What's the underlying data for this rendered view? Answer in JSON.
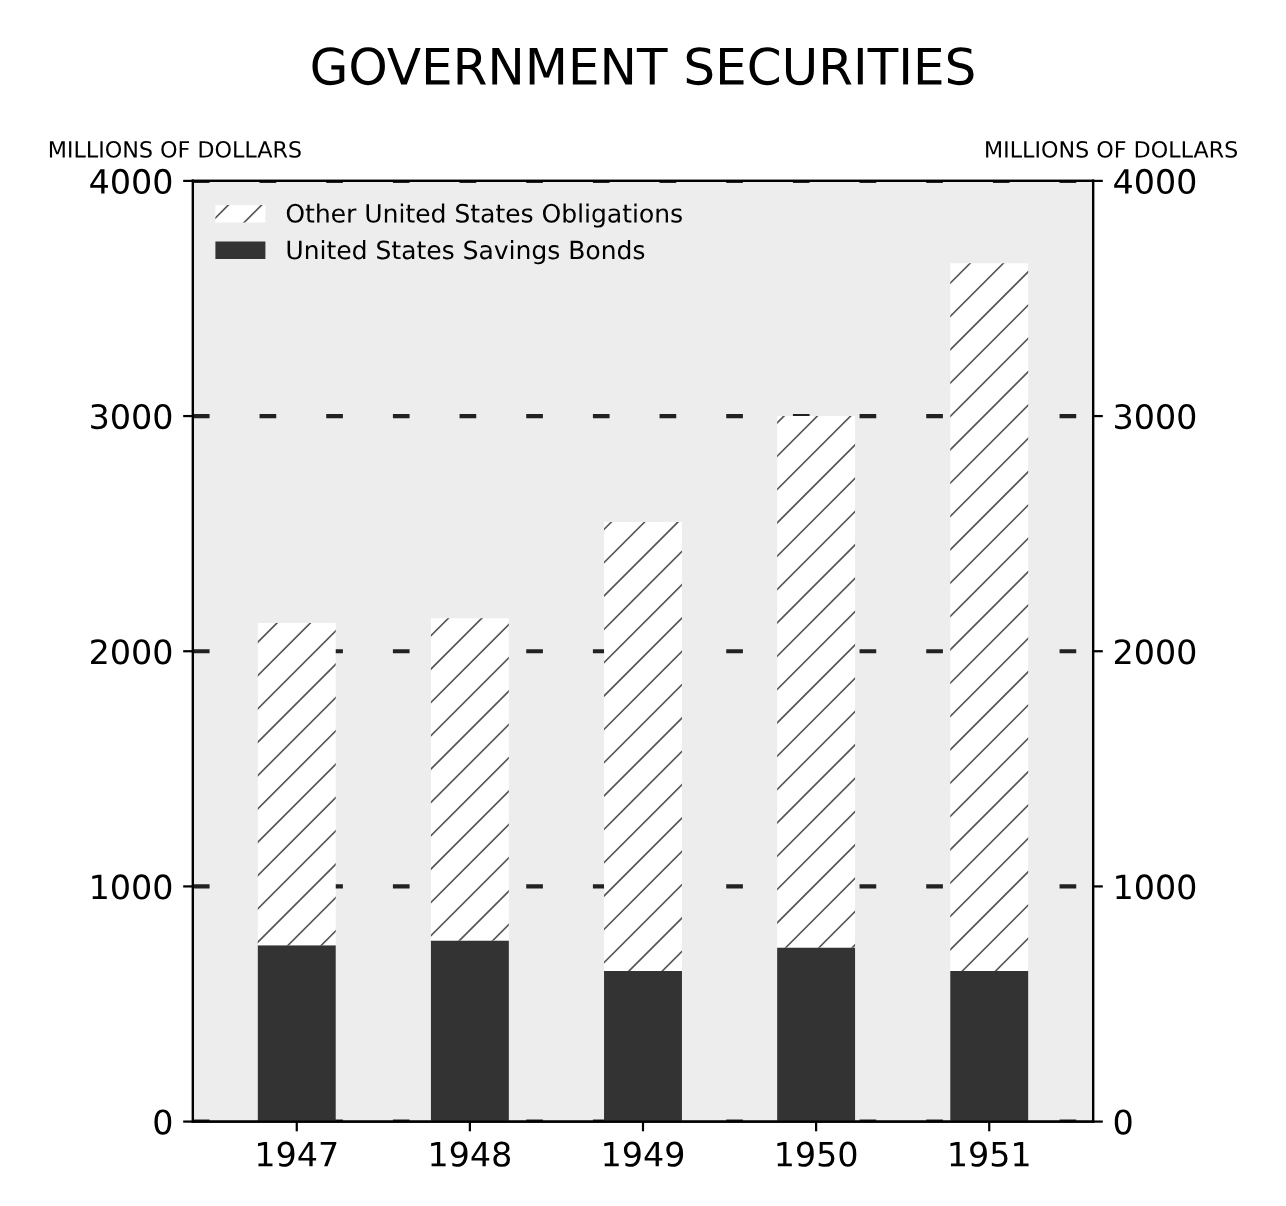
{
  "chart_data": {
    "type": "bar",
    "title": "GOVERNMENT SECURITIES",
    "ylabel": "MILLIONS OF DOLLARS",
    "y2label": "MILLIONS OF DOLLARS",
    "categories": [
      "1947",
      "1948",
      "1949",
      "1950",
      "1951"
    ],
    "stacked": true,
    "series": [
      {
        "name": "United States Savings Bonds",
        "color": "#333333",
        "values": [
          750,
          770,
          640,
          740,
          640
        ]
      },
      {
        "name": "Other United States Obligations",
        "color": "#ffffff",
        "values": [
          1370,
          1370,
          1910,
          2260,
          3010
        ]
      }
    ],
    "ylim": [
      0,
      4000
    ],
    "yticks": [
      0,
      1000,
      2000,
      3000,
      4000
    ],
    "y2lim": [
      0,
      4000
    ],
    "y2ticks": [
      0,
      1000,
      2000,
      3000,
      4000
    ],
    "grid": "y",
    "legend": "top left"
  }
}
